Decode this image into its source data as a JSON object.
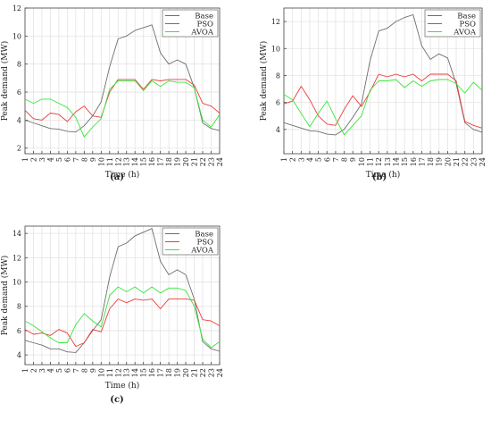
{
  "chart_data": [
    {
      "type": "line",
      "panel_label": "(a)",
      "title": "",
      "xlabel": "Time (h)",
      "ylabel": "Peak demand (MW)",
      "x": [
        1,
        2,
        3,
        4,
        5,
        6,
        7,
        8,
        9,
        10,
        11,
        12,
        13,
        14,
        15,
        16,
        17,
        18,
        19,
        20,
        21,
        22,
        23,
        24
      ],
      "x_ticks": [
        "1",
        "2",
        "3",
        "4",
        "5",
        "6",
        "7",
        "8",
        "9",
        "10",
        "11",
        "12",
        "13",
        "14",
        "15",
        "16",
        "17",
        "18",
        "19",
        "20",
        "21",
        "22",
        "23",
        "24"
      ],
      "xlim": [
        1,
        24
      ],
      "ylim": [
        1.6,
        12
      ],
      "y_ticks": [
        2,
        4,
        6,
        8,
        10,
        12
      ],
      "grid": true,
      "legend_position": "top-right",
      "series": [
        {
          "name": "Base",
          "color": "#6e6e6e",
          "values": [
            4.0,
            3.8,
            3.6,
            3.4,
            3.35,
            3.2,
            3.15,
            3.6,
            4.3,
            5.3,
            7.8,
            9.8,
            10.0,
            10.4,
            10.6,
            10.8,
            8.8,
            8.0,
            8.3,
            8.0,
            6.3,
            3.8,
            3.4,
            3.25
          ]
        },
        {
          "name": "PSO",
          "color": "#ee3b3b",
          "values": [
            4.7,
            4.1,
            4.0,
            4.5,
            4.4,
            3.9,
            4.6,
            5.0,
            4.3,
            4.2,
            6.0,
            6.9,
            6.9,
            6.9,
            6.2,
            6.9,
            6.8,
            6.9,
            6.9,
            6.9,
            6.5,
            5.2,
            5.0,
            4.5
          ]
        },
        {
          "name": "AVOA",
          "color": "#39e639",
          "values": [
            5.5,
            5.2,
            5.5,
            5.5,
            5.2,
            4.9,
            4.2,
            2.8,
            3.5,
            4.1,
            6.2,
            6.8,
            6.8,
            6.8,
            6.1,
            6.8,
            6.4,
            6.8,
            6.7,
            6.7,
            6.3,
            4.0,
            3.5,
            4.4
          ]
        }
      ]
    },
    {
      "type": "line",
      "panel_label": "(b)",
      "title": "",
      "xlabel": "Time (h)",
      "ylabel": "Peak demand (MW)",
      "x": [
        1,
        2,
        3,
        4,
        5,
        6,
        7,
        8,
        9,
        10,
        11,
        12,
        13,
        14,
        15,
        16,
        17,
        18,
        19,
        20,
        21,
        22,
        23,
        24
      ],
      "x_ticks": [
        "1",
        "2",
        "3",
        "4",
        "5",
        "6",
        "7",
        "8",
        "9",
        "10",
        "11",
        "12",
        "13",
        "14",
        "15",
        "16",
        "17",
        "18",
        "19",
        "20",
        "21",
        "22",
        "23",
        "24"
      ],
      "xlim": [
        1,
        24
      ],
      "ylim": [
        2.2,
        13
      ],
      "y_ticks": [
        4,
        6,
        8,
        10,
        12
      ],
      "grid": true,
      "legend_position": "top-right",
      "series": [
        {
          "name": "Base",
          "color": "#6e6e6e",
          "values": [
            4.5,
            4.3,
            4.1,
            3.9,
            3.85,
            3.65,
            3.6,
            4.0,
            4.9,
            5.9,
            9.1,
            11.3,
            11.5,
            12.0,
            12.3,
            12.5,
            10.2,
            9.2,
            9.6,
            9.3,
            7.4,
            4.5,
            4.0,
            3.8
          ]
        },
        {
          "name": "PSO",
          "color": "#ee3b3b",
          "values": [
            5.9,
            6.1,
            7.2,
            6.2,
            5.0,
            4.4,
            4.3,
            5.5,
            6.5,
            5.7,
            6.8,
            8.1,
            7.9,
            8.1,
            7.9,
            8.1,
            7.6,
            8.1,
            8.1,
            8.1,
            7.6,
            4.6,
            4.3,
            4.1
          ]
        },
        {
          "name": "AVOA",
          "color": "#39e639",
          "values": [
            6.6,
            6.2,
            5.2,
            4.2,
            5.2,
            6.1,
            4.8,
            3.6,
            4.3,
            5.0,
            6.9,
            7.6,
            7.6,
            7.7,
            7.1,
            7.6,
            7.2,
            7.6,
            7.7,
            7.7,
            7.4,
            6.7,
            7.5,
            6.9
          ]
        }
      ]
    },
    {
      "type": "line",
      "panel_label": "(c)",
      "title": "",
      "xlabel": "Time (h)",
      "ylabel": "Peak demand (MW)",
      "x": [
        1,
        2,
        3,
        4,
        5,
        6,
        7,
        8,
        9,
        10,
        11,
        12,
        13,
        14,
        15,
        16,
        17,
        18,
        19,
        20,
        21,
        22,
        23,
        24
      ],
      "x_ticks": [
        "1",
        "2",
        "3",
        "4",
        "5",
        "6",
        "7",
        "8",
        "9",
        "10",
        "11",
        "12",
        "13",
        "14",
        "15",
        "16",
        "17",
        "18",
        "19",
        "20",
        "21",
        "22",
        "23",
        "24"
      ],
      "xlim": [
        1,
        24
      ],
      "ylim": [
        3.2,
        14.6
      ],
      "y_ticks": [
        4,
        6,
        8,
        10,
        12,
        14
      ],
      "grid": true,
      "legend_position": "top-right",
      "series": [
        {
          "name": "Base",
          "color": "#6e6e6e",
          "values": [
            5.2,
            5.0,
            4.8,
            4.5,
            4.5,
            4.25,
            4.2,
            5.0,
            6.0,
            6.9,
            10.4,
            12.9,
            13.2,
            13.8,
            14.1,
            14.4,
            11.7,
            10.6,
            11.0,
            10.6,
            8.6,
            5.1,
            4.5,
            4.3
          ]
        },
        {
          "name": "PSO",
          "color": "#ee3b3b",
          "values": [
            6.1,
            5.7,
            5.8,
            5.6,
            6.1,
            5.8,
            4.7,
            5.0,
            6.1,
            5.9,
            7.8,
            8.6,
            8.3,
            8.6,
            8.5,
            8.6,
            7.8,
            8.6,
            8.6,
            8.6,
            8.5,
            6.9,
            6.8,
            6.4
          ]
        },
        {
          "name": "AVOA",
          "color": "#39e639",
          "values": [
            6.8,
            6.4,
            5.9,
            5.4,
            5.0,
            5.0,
            6.5,
            7.4,
            6.8,
            6.3,
            8.9,
            9.6,
            9.2,
            9.6,
            9.1,
            9.6,
            9.1,
            9.5,
            9.5,
            9.3,
            8.0,
            5.3,
            4.6,
            5.1
          ]
        }
      ]
    }
  ]
}
